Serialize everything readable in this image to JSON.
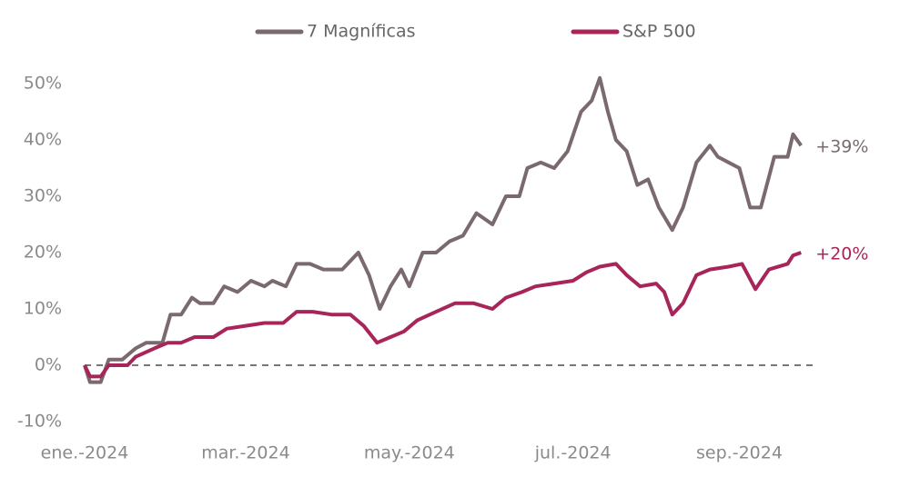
{
  "chart_data": {
    "type": "line",
    "series": [
      {
        "name": "7 Magníficas",
        "color": "#7a6a70",
        "x": [
          0,
          2,
          6,
          9,
          14,
          19,
          23,
          29,
          32,
          36,
          40,
          43,
          48,
          52,
          57,
          62,
          67,
          70,
          75,
          79,
          84,
          89,
          96,
          102,
          106,
          110,
          114,
          118,
          121,
          126,
          131,
          136,
          141,
          146,
          152,
          157,
          162,
          165,
          170,
          175,
          180,
          185,
          189,
          192,
          195,
          198,
          202,
          206,
          210,
          214,
          219,
          223,
          228,
          233,
          236,
          240,
          244,
          248,
          252,
          257,
          262,
          264,
          267
        ],
        "values": [
          0,
          -3,
          -3,
          1,
          1,
          3,
          4,
          4,
          9,
          9,
          12,
          11,
          11,
          14,
          13,
          15,
          14,
          15,
          14,
          18,
          18,
          17,
          17,
          20,
          16,
          10,
          14,
          17,
          14,
          20,
          20,
          22,
          23,
          27,
          25,
          30,
          30,
          35,
          36,
          35,
          38,
          45,
          47,
          51,
          45,
          40,
          38,
          32,
          33,
          28,
          24,
          28,
          36,
          39,
          37,
          36,
          35,
          28,
          28,
          37,
          37,
          41,
          39
        ]
      },
      {
        "name": "S&P 500",
        "color": "#a8255a",
        "x": [
          0,
          2,
          6,
          9,
          16,
          19,
          26,
          31,
          36,
          41,
          48,
          53,
          60,
          67,
          74,
          79,
          85,
          92,
          99,
          104,
          109,
          114,
          119,
          124,
          131,
          138,
          145,
          152,
          157,
          163,
          168,
          175,
          182,
          187,
          192,
          198,
          202,
          207,
          213,
          216,
          219,
          223,
          228,
          233,
          240,
          245,
          250,
          255,
          262,
          264,
          267
        ],
        "values": [
          0,
          -2,
          -2,
          0,
          0,
          1.5,
          3,
          4,
          4,
          5,
          5,
          6.5,
          7,
          7.5,
          7.5,
          9.5,
          9.5,
          9,
          9,
          7,
          4,
          5,
          6,
          8,
          9.5,
          11,
          11,
          10,
          12,
          13,
          14,
          14.5,
          15,
          16.5,
          17.5,
          18,
          16,
          14,
          14.5,
          13,
          9,
          11,
          16,
          17,
          17.5,
          18,
          13.5,
          17,
          18,
          19.5,
          20
        ]
      }
    ],
    "annotations": [
      "+39%",
      "+20%"
    ],
    "xlim": [
      0,
      273
    ],
    "xticks": [
      {
        "value": 0,
        "label": "ene.-2024"
      },
      {
        "value": 60,
        "label": "mar.-2024"
      },
      {
        "value": 121,
        "label": "may.-2024"
      },
      {
        "value": 182,
        "label": "jul.-2024"
      },
      {
        "value": 244,
        "label": "sep.-2024"
      }
    ],
    "ylim": [
      -10,
      50
    ],
    "yticks": [
      {
        "value": -10,
        "label": "-10%"
      },
      {
        "value": 0,
        "label": "0%"
      },
      {
        "value": 10,
        "label": "10%"
      },
      {
        "value": 20,
        "label": "20%"
      },
      {
        "value": 30,
        "label": "30%"
      },
      {
        "value": 40,
        "label": "40%"
      },
      {
        "value": 50,
        "label": "50%"
      }
    ],
    "zero_line": true,
    "legend": "top"
  }
}
